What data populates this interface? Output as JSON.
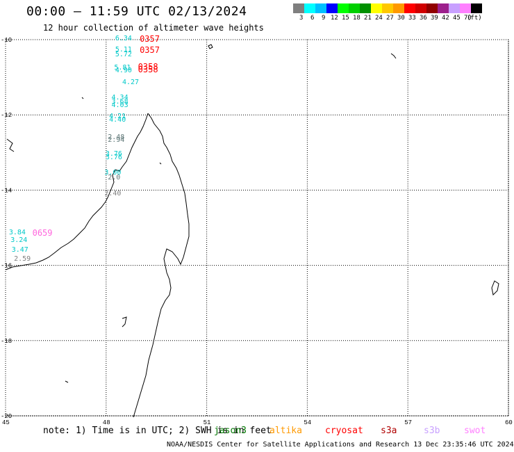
{
  "title": "00:00 – 11:59 UTC 02/13/2024",
  "subtitle": "12 hour collection of altimeter wave heights",
  "legend": {
    "colors": [
      "#7f7f7f",
      "#00ffff",
      "#00bfff",
      "#0000ff",
      "#00ff00",
      "#00d000",
      "#009000",
      "#ffff00",
      "#ffc800",
      "#ff9900",
      "#ff0000",
      "#d00000",
      "#900000",
      "#9c1f8c",
      "#c8a0ff",
      "#ff80ff",
      "#000000"
    ],
    "labels": [
      "3",
      "6",
      "9",
      "12",
      "15",
      "18",
      "21",
      "24",
      "27",
      "30",
      "33",
      "36",
      "39",
      "42",
      "45",
      "70",
      "(ft)"
    ]
  },
  "axes": {
    "y_ticks": [
      "-10",
      "-12",
      "-14",
      "-16",
      "-18",
      "-20"
    ],
    "x_ticks": [
      "45",
      "48",
      "51",
      "54",
      "57",
      "60"
    ]
  },
  "swh_labels": [
    {
      "text": "6.34",
      "lon": 48.27,
      "lat": -9.98,
      "color": "#00c8c8"
    },
    {
      "text": "5.11",
      "lon": 48.27,
      "lat": -10.27,
      "color": "#00c8c8"
    },
    {
      "text": "5.72",
      "lon": 48.27,
      "lat": -10.4,
      "color": "#00c8c8"
    },
    {
      "text": "5.81",
      "lon": 48.24,
      "lat": -10.76,
      "color": "#00c8c8"
    },
    {
      "text": "4.90",
      "lon": 48.27,
      "lat": -10.84,
      "color": "#00c8c8"
    },
    {
      "text": "4.27",
      "lon": 48.48,
      "lat": -11.15,
      "color": "#00c8c8"
    },
    {
      "text": "4.34",
      "lon": 48.16,
      "lat": -11.55,
      "color": "#00c8c8"
    },
    {
      "text": "3.68",
      "lon": 48.16,
      "lat": -11.66,
      "color": "#00c8c8"
    },
    {
      "text": "4.03",
      "lon": 48.16,
      "lat": -11.76,
      "color": "#00c8c8"
    },
    {
      "text": "4.21",
      "lon": 48.09,
      "lat": -12.05,
      "color": "#00c8c8"
    },
    {
      "text": "4.40",
      "lon": 48.09,
      "lat": -12.15,
      "color": "#00c8c8"
    },
    {
      "text": "2.48",
      "lon": 48.05,
      "lat": -12.6,
      "color": "#607878"
    },
    {
      "text": "2.94",
      "lon": 48.05,
      "lat": -12.68,
      "color": "#607878"
    },
    {
      "text": "3.76",
      "lon": 47.98,
      "lat": -13.05,
      "color": "#00c8c8"
    },
    {
      "text": "3.76",
      "lon": 47.98,
      "lat": -13.15,
      "color": "#00c8c8"
    },
    {
      "text": "3.00",
      "lon": 47.95,
      "lat": -13.55,
      "color": "#00c8c8"
    },
    {
      "text": "2.0",
      "lon": 48.05,
      "lat": -13.67,
      "color": "#607878"
    },
    {
      "text": "2.40",
      "lon": 47.95,
      "lat": -14.1,
      "color": "#808080"
    },
    {
      "text": "3.84",
      "lon": 45.1,
      "lat": -15.13,
      "color": "#00c8c8"
    },
    {
      "text": "3.24",
      "lon": 45.15,
      "lat": -15.35,
      "color": "#00c8c8"
    },
    {
      "text": "3.47",
      "lon": 45.18,
      "lat": -15.6,
      "color": "#00c8c8"
    },
    {
      "text": "2.59",
      "lon": 45.25,
      "lat": -15.84,
      "color": "#808080"
    }
  ],
  "time_labels": [
    {
      "text": "0357",
      "lon": 49.0,
      "lat": -9.98,
      "color": "#ff0000"
    },
    {
      "text": "0357",
      "lon": 49.0,
      "lat": -10.27,
      "color": "#ff0000"
    },
    {
      "text": "0358",
      "lon": 48.95,
      "lat": -10.73,
      "color": "#ff0000"
    },
    {
      "text": "0358",
      "lon": 48.95,
      "lat": -10.8,
      "color": "#ff0000"
    },
    {
      "text": "0659",
      "lon": 45.8,
      "lat": -15.13,
      "color": "#ff66dd"
    }
  ],
  "note": "note: 1) Time is in UTC; 2) SWH is in feet",
  "satellites": [
    {
      "name": "jason3",
      "color": "#007700"
    },
    {
      "name": "altika",
      "color": "#ff9900"
    },
    {
      "name": "cryosat",
      "color": "#ff0000"
    },
    {
      "name": "s3a",
      "color": "#b00000"
    },
    {
      "name": "s3b",
      "color": "#c8a0ff"
    },
    {
      "name": "swot",
      "color": "#ff80ff"
    }
  ],
  "credit": "NOAA/NESDIS Center for Satellite Applications and Research    13 Dec 23:35:46 UTC 2024"
}
